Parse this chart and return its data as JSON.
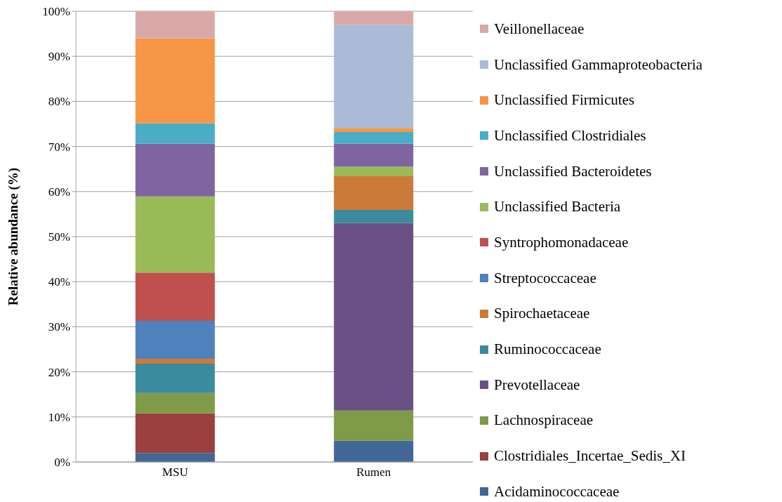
{
  "chart_data": {
    "type": "bar",
    "stacked": true,
    "ylabel": "Relative abundance (%)",
    "categories": [
      "MSU",
      "Rumen"
    ],
    "ylim": [
      0,
      100
    ],
    "yticks": [
      {
        "value": 0,
        "label": "0%"
      },
      {
        "value": 10,
        "label": "10%"
      },
      {
        "value": 20,
        "label": "20%"
      },
      {
        "value": 30,
        "label": "30%"
      },
      {
        "value": 40,
        "label": "40%"
      },
      {
        "value": 50,
        "label": "50%"
      },
      {
        "value": 60,
        "label": "60%"
      },
      {
        "value": 70,
        "label": "70%"
      },
      {
        "value": 80,
        "label": "80%"
      },
      {
        "value": 90,
        "label": "90%"
      },
      {
        "value": 100,
        "label": "100%"
      }
    ],
    "grid": "y",
    "legend": "right",
    "series": [
      {
        "name": "Acidaminococcaceae",
        "color": "#416797",
        "values": [
          2.0,
          4.7
        ]
      },
      {
        "name": "Clostridiales_Incertae_Sedis_XI",
        "color": "#9b403e",
        "values": [
          8.8,
          0
        ]
      },
      {
        "name": "Lachnospiraceae",
        "color": "#7f9a48",
        "values": [
          4.5,
          6.7
        ]
      },
      {
        "name": "Prevotellaceae",
        "color": "#695185",
        "values": [
          0,
          41.6
        ]
      },
      {
        "name": "Ruminococcaceae",
        "color": "#3a8b9e",
        "values": [
          6.5,
          2.9
        ]
      },
      {
        "name": "Spirochaetaceae",
        "color": "#cc7a37",
        "values": [
          1.1,
          7.5
        ]
      },
      {
        "name": "Streptococcaceae",
        "color": "#4f81bd",
        "values": [
          8.4,
          0
        ]
      },
      {
        "name": "Syntrophomonadaceae",
        "color": "#c0504d",
        "values": [
          10.7,
          0
        ]
      },
      {
        "name": "Unclassified Bacteria",
        "color": "#9bbb59",
        "values": [
          16.9,
          2.1
        ]
      },
      {
        "name": "Unclassified Bacteroidetes",
        "color": "#8064a2",
        "values": [
          11.7,
          5.1
        ]
      },
      {
        "name": "Unclassified Clostridiales",
        "color": "#4bacc6",
        "values": [
          4.5,
          2.6
        ]
      },
      {
        "name": "Unclassified Firmicutes",
        "color": "#f79646",
        "values": [
          18.9,
          0.9
        ]
      },
      {
        "name": "Unclassified Gammaproteobacteria",
        "color": "#aabad7",
        "values": [
          0,
          22.9
        ]
      },
      {
        "name": "Veillonellaceae",
        "color": "#d9a9a9",
        "values": [
          6.0,
          3.0
        ]
      }
    ]
  }
}
